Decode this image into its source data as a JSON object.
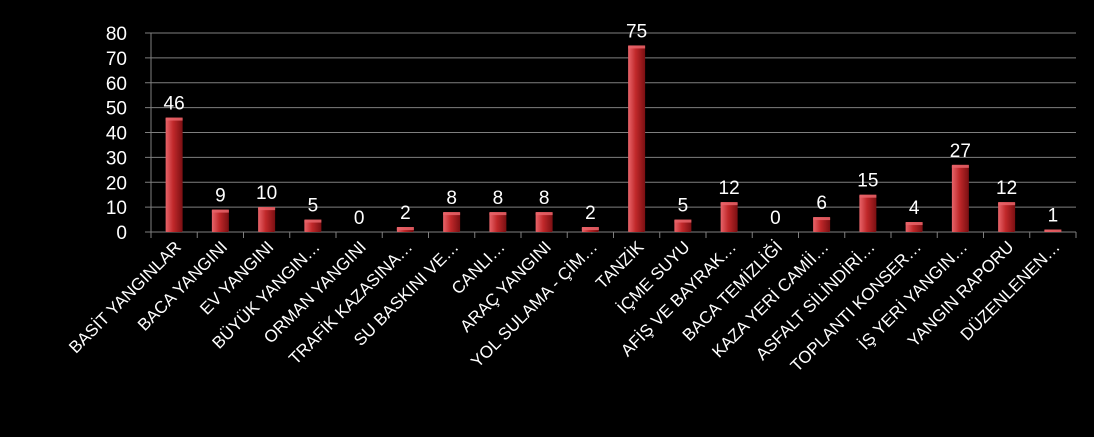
{
  "chart_data": {
    "type": "bar",
    "title": "",
    "xlabel": "",
    "ylabel": "",
    "ylim": [
      0,
      80
    ],
    "yticks": [
      0,
      10,
      20,
      30,
      40,
      50,
      60,
      70,
      80
    ],
    "grid": true,
    "legend": "none",
    "categories": [
      "BASİT YANGINLAR",
      "BACA YANGINI",
      "EV YANGINI",
      "BÜYÜK YANGIN…",
      "ORMAN YANGINI",
      "TRAFİK KAZASINA…",
      "SU BASKINI VE…",
      "CANLI…",
      "ARAÇ YANGINI",
      "YOL SULAMA - ÇİM…",
      "TANZİK",
      "İÇME SUYU",
      "AFİŞ VE BAYRAK…",
      "BACA TEMİZLİĞİ",
      "KAZA YERİ CAMİİ…",
      "ASFALT SİLİNDİRİ…",
      "TOPLANTI KONSER…",
      "İŞ YERİ YANGIN…",
      "YANGIN RAPORU",
      "DÜZENLENEN…"
    ],
    "values": [
      46,
      9,
      10,
      5,
      0,
      2,
      8,
      8,
      8,
      2,
      75,
      5,
      12,
      0,
      6,
      15,
      4,
      27,
      12,
      1
    ],
    "data_labels": [
      "46",
      "9",
      "10",
      "5",
      "0",
      "2",
      "8",
      "8",
      "8",
      "2",
      "75",
      "5",
      "12",
      "0",
      "6",
      "15",
      "4",
      "27",
      "12",
      "1"
    ],
    "colors": {
      "background": "#000000",
      "bar": "#c0282a",
      "bar_light": "#e8646a",
      "bar_dark": "#7a0f12",
      "grid": "#7f7f7f",
      "text": "#ffffff"
    }
  }
}
